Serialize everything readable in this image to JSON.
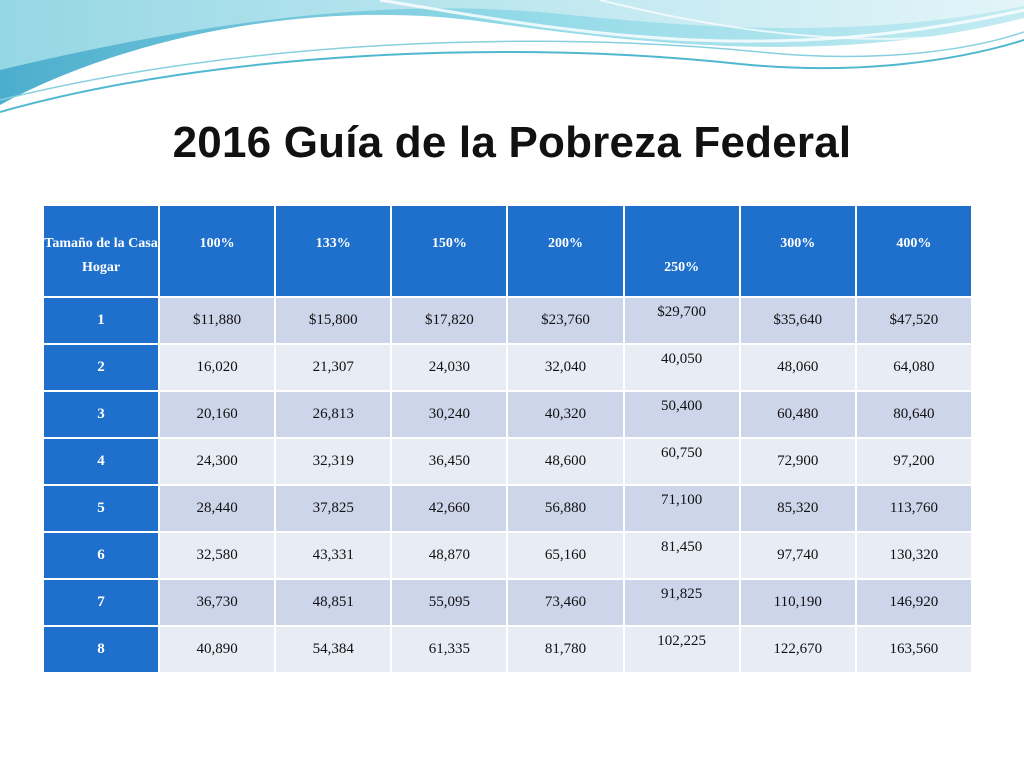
{
  "slide": {
    "title": "2016 Guía de la Pobreza Federal"
  },
  "table": {
    "headers": [
      "Tamaño de la Casa Hogar",
      "100%",
      "133%",
      "150%",
      "200%",
      "250%",
      "300%",
      "400%"
    ],
    "rows": [
      [
        "1",
        "$11,880",
        "$15,800",
        "$17,820",
        "$23,760",
        "$29,700",
        "$35,640",
        "$47,520"
      ],
      [
        "2",
        "16,020",
        "21,307",
        "24,030",
        "32,040",
        "40,050",
        "48,060",
        "64,080"
      ],
      [
        "3",
        "20,160",
        "26,813",
        "30,240",
        "40,320",
        "50,400",
        "60,480",
        "80,640"
      ],
      [
        "4",
        "24,300",
        "32,319",
        "36,450",
        "48,600",
        "60,750",
        "72,900",
        "97,200"
      ],
      [
        "5",
        "28,440",
        "37,825",
        "42,660",
        "56,880",
        "71,100",
        "85,320",
        "113,760"
      ],
      [
        "6",
        "32,580",
        "43,331",
        "48,870",
        "65,160",
        "81,450",
        "97,740",
        "130,320"
      ],
      [
        "7",
        "36,730",
        "48,851",
        "55,095",
        "73,460",
        "91,825",
        "110,190",
        "146,920"
      ],
      [
        "8",
        "40,890",
        "54,384",
        "61,335",
        "81,780",
        "102,225",
        "122,670",
        "163,560"
      ]
    ]
  },
  "colors": {
    "header_blue": "#1f6fcc",
    "row_dark": "#cdd5ea",
    "row_light": "#e8ecf5",
    "wave_teal": "#5fc4d8"
  }
}
